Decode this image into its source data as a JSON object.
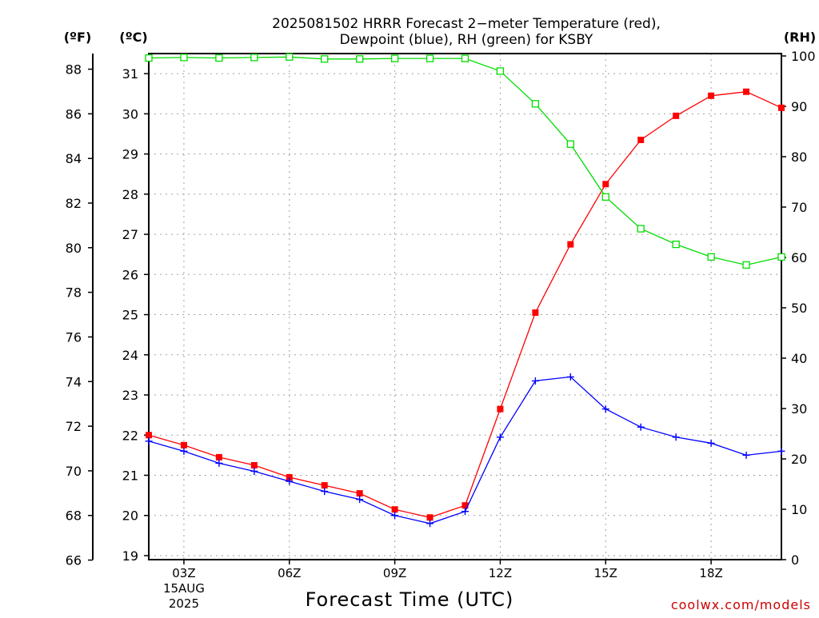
{
  "title_line1": "2025081502 HRRR Forecast 2−meter Temperature (red),",
  "title_line2": "Dewpoint (blue), RH (green) for KSBY",
  "credit": "coolwx.com/models",
  "chart_data": {
    "type": "line",
    "xlabel": "Forecast Time (UTC)",
    "axes": {
      "left_outer_label": "(ºF)",
      "left_inner_label": "(ºC)",
      "right_label": "(RH)",
      "fahrenheit_ticks": [
        "66",
        "68",
        "70",
        "72",
        "74",
        "76",
        "78",
        "80",
        "82",
        "84",
        "86",
        "88"
      ],
      "celsius_ticks": [
        "19",
        "20",
        "21",
        "22",
        "23",
        "24",
        "25",
        "26",
        "27",
        "28",
        "29",
        "30",
        "31"
      ],
      "rh_ticks": [
        "0",
        "10",
        "20",
        "30",
        "40",
        "50",
        "60",
        "70",
        "80",
        "90",
        "100"
      ],
      "celsius_range": [
        18.9,
        31.5
      ],
      "rh_range": [
        0,
        100
      ],
      "x_range_hours_utc": [
        2,
        20
      ]
    },
    "x_ticks": [
      {
        "hour": 3,
        "label": "03Z",
        "date_line1": "15AUG",
        "date_line2": "2025"
      },
      {
        "hour": 6,
        "label": "06Z",
        "date_line1": "",
        "date_line2": ""
      },
      {
        "hour": 9,
        "label": "09Z",
        "date_line1": "",
        "date_line2": ""
      },
      {
        "hour": 12,
        "label": "12Z",
        "date_line1": "",
        "date_line2": ""
      },
      {
        "hour": 15,
        "label": "15Z",
        "date_line1": "",
        "date_line2": ""
      },
      {
        "hour": 18,
        "label": "18Z",
        "date_line1": "",
        "date_line2": ""
      }
    ],
    "x_hours_utc": [
      2,
      3,
      4,
      5,
      6,
      7,
      8,
      9,
      10,
      11,
      12,
      13,
      14,
      15,
      16,
      17,
      18,
      19,
      20
    ],
    "series": [
      {
        "name": "Temperature",
        "color": "#ff0000",
        "unit": "°C",
        "marker": "filled-square",
        "values": [
          22.0,
          21.75,
          21.45,
          21.25,
          20.95,
          20.75,
          20.55,
          20.15,
          19.95,
          20.25,
          22.65,
          25.05,
          26.75,
          28.25,
          29.35,
          29.95,
          30.45,
          30.55,
          30.15
        ]
      },
      {
        "name": "Dewpoint",
        "color": "#0000ff",
        "unit": "°C",
        "marker": "plus",
        "values": [
          21.85,
          21.6,
          21.3,
          21.1,
          20.85,
          20.6,
          20.4,
          20.0,
          19.8,
          20.1,
          21.95,
          23.35,
          23.45,
          22.65,
          22.2,
          21.95,
          21.8,
          21.5,
          21.6
        ]
      },
      {
        "name": "RH",
        "color": "#00dd00",
        "unit": "%",
        "marker": "open-square",
        "values": [
          99.6,
          99.7,
          99.6,
          99.7,
          99.8,
          99.4,
          99.4,
          99.5,
          99.5,
          99.5,
          97.0,
          90.5,
          82.5,
          72.0,
          65.7,
          62.6,
          60.1,
          58.5,
          60.1
        ]
      }
    ]
  }
}
